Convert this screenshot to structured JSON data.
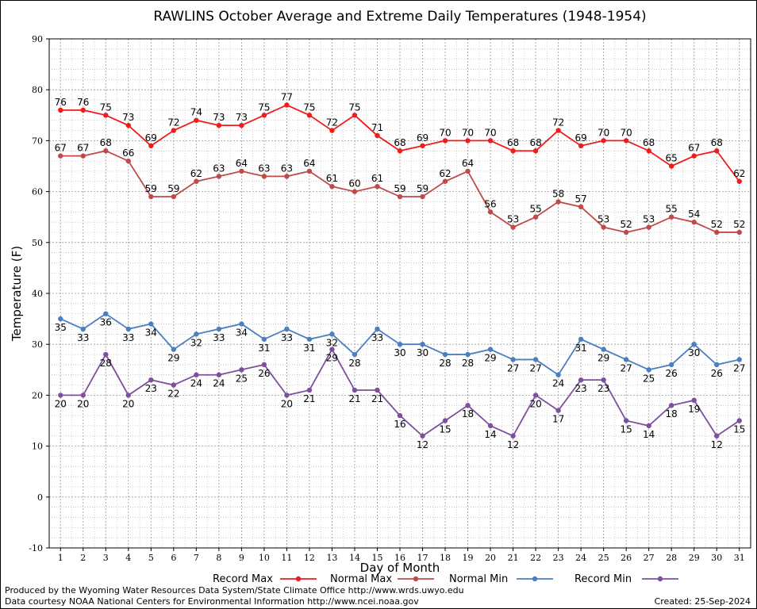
{
  "chart_data": {
    "type": "line",
    "title": "RAWLINS October Average and Extreme Daily Temperatures (1948-1954)",
    "xlabel": "Day of Month",
    "ylabel": "Temperature (F)",
    "ylim": [
      -10,
      90
    ],
    "yticks": [
      -10,
      0,
      10,
      20,
      30,
      40,
      50,
      60,
      70,
      80,
      90
    ],
    "x": [
      1,
      2,
      3,
      4,
      5,
      6,
      7,
      8,
      9,
      10,
      11,
      12,
      13,
      14,
      15,
      16,
      17,
      18,
      19,
      20,
      21,
      22,
      23,
      24,
      25,
      26,
      27,
      28,
      29,
      30,
      31
    ],
    "grid": true,
    "legend_position": "bottom",
    "series": [
      {
        "name": "Record Max",
        "color": "#ee1c1c",
        "values": [
          76,
          76,
          75,
          73,
          69,
          72,
          74,
          73,
          73,
          75,
          77,
          75,
          72,
          75,
          71,
          68,
          69,
          70,
          70,
          70,
          68,
          68,
          72,
          69,
          70,
          70,
          68,
          65,
          67,
          68,
          62
        ]
      },
      {
        "name": "Normal Max",
        "color": "#bf4a4a",
        "values": [
          67,
          67,
          68,
          66,
          59,
          59,
          62,
          63,
          64,
          63,
          63,
          64,
          61,
          60,
          61,
          59,
          59,
          62,
          64,
          56,
          53,
          55,
          58,
          57,
          53,
          52,
          53,
          55,
          54,
          52,
          52
        ]
      },
      {
        "name": "Normal Min",
        "color": "#4a7fc0",
        "values": [
          35,
          33,
          36,
          33,
          34,
          29,
          32,
          33,
          34,
          31,
          33,
          31,
          32,
          28,
          33,
          30,
          30,
          28,
          28,
          29,
          27,
          27,
          24,
          31,
          29,
          27,
          25,
          26,
          30,
          26,
          27
        ]
      },
      {
        "name": "Record Min",
        "color": "#7d4f9e",
        "values": [
          20,
          20,
          28,
          20,
          23,
          22,
          24,
          24,
          25,
          26,
          20,
          21,
          29,
          21,
          21,
          16,
          12,
          15,
          18,
          14,
          12,
          20,
          17,
          23,
          23,
          15,
          14,
          18,
          19,
          12,
          15
        ]
      }
    ]
  },
  "footer": {
    "credit_line1": "Produced by the Wyoming Water Resources Data System/State Climate Office http://www.wrds.uwyo.edu",
    "credit_line2": "Data courtesy NOAA National Centers for Environmental Information http://www.ncei.noaa.gov",
    "created": "Created:  25-Sep-2024"
  }
}
